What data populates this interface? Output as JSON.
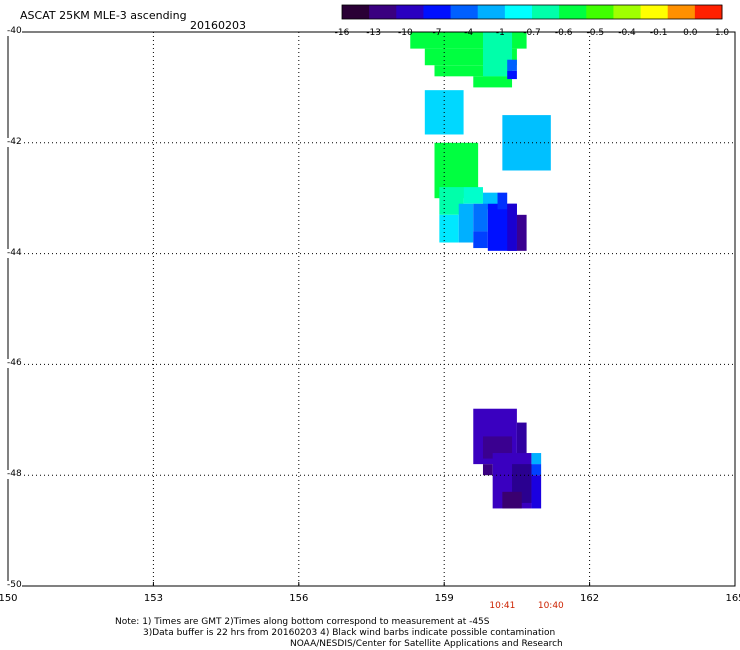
{
  "header": {
    "title": "ASCAT 25KM MLE-3 ascending",
    "date": "20160203"
  },
  "colorbar": {
    "labels": [
      "-16",
      "-13",
      "-10",
      "-7",
      "-4",
      "-1",
      "-0.7",
      "-0.6",
      "-0.5",
      "-0.4",
      "-0.1",
      "0.0",
      "1.0"
    ],
    "colors": [
      "#2a0035",
      "#3a0080",
      "#2a00c0",
      "#0010ff",
      "#0060ff",
      "#00b0ff",
      "#00ffff",
      "#00ffaa",
      "#00ff40",
      "#40ff00",
      "#a0ff00",
      "#ffff00",
      "#ff9000",
      "#ff2000"
    ]
  },
  "chart_data": {
    "type": "heatmap",
    "xlim": [
      150,
      165
    ],
    "ylim": [
      -50,
      -40
    ],
    "x_ticks": [
      "150",
      "153",
      "156",
      "159",
      "162",
      "165"
    ],
    "y_ticks": [
      "-40",
      "-42",
      "-44",
      "-46",
      "-48",
      "-50"
    ],
    "times": [
      {
        "label": "10:41",
        "lon": 160.2
      },
      {
        "label": "10:40",
        "lon": 161.2
      }
    ],
    "cells": [
      {
        "lon0": 158.3,
        "lon1": 160.7,
        "lat0": -40.0,
        "lat1": -40.3,
        "color": "#00ff40"
      },
      {
        "lon0": 158.6,
        "lon1": 160.5,
        "lat0": -40.3,
        "lat1": -40.6,
        "color": "#00ff40"
      },
      {
        "lon0": 158.8,
        "lon1": 160.4,
        "lat0": -40.6,
        "lat1": -40.8,
        "color": "#00ff40"
      },
      {
        "lon0": 159.6,
        "lon1": 160.4,
        "lat0": -40.8,
        "lat1": -41.0,
        "color": "#00ff40"
      },
      {
        "lon0": 159.8,
        "lon1": 160.4,
        "lat0": -40.0,
        "lat1": -40.8,
        "color": "#00ffaa"
      },
      {
        "lon0": 160.3,
        "lon1": 160.5,
        "lat0": -40.5,
        "lat1": -40.7,
        "color": "#0060ff"
      },
      {
        "lon0": 160.3,
        "lon1": 160.5,
        "lat0": -40.7,
        "lat1": -40.85,
        "color": "#0010ff"
      },
      {
        "lon0": 158.6,
        "lon1": 159.4,
        "lat0": -41.05,
        "lat1": -41.85,
        "color": "#00d8ff"
      },
      {
        "lon0": 160.2,
        "lon1": 161.2,
        "lat0": -41.5,
        "lat1": -42.5,
        "color": "#00c0ff"
      },
      {
        "lon0": 158.8,
        "lon1": 159.7,
        "lat0": -42.0,
        "lat1": -43.0,
        "color": "#00ff40"
      },
      {
        "lon0": 158.9,
        "lon1": 159.4,
        "lat0": -42.8,
        "lat1": -43.3,
        "color": "#00ffaa"
      },
      {
        "lon0": 159.4,
        "lon1": 159.8,
        "lat0": -42.8,
        "lat1": -43.1,
        "color": "#00ffcc"
      },
      {
        "lon0": 159.8,
        "lon1": 160.1,
        "lat0": -42.9,
        "lat1": -43.2,
        "color": "#00c0ff"
      },
      {
        "lon0": 158.9,
        "lon1": 159.3,
        "lat0": -43.3,
        "lat1": -43.8,
        "color": "#00e8ff"
      },
      {
        "lon0": 159.3,
        "lon1": 159.6,
        "lat0": -43.1,
        "lat1": -43.8,
        "color": "#00b0ff"
      },
      {
        "lon0": 159.6,
        "lon1": 159.9,
        "lat0": -43.1,
        "lat1": -43.6,
        "color": "#0070ff"
      },
      {
        "lon0": 159.6,
        "lon1": 159.9,
        "lat0": -43.6,
        "lat1": -43.9,
        "color": "#0040ff"
      },
      {
        "lon0": 159.9,
        "lon1": 160.5,
        "lat0": -43.1,
        "lat1": -43.95,
        "color": "#0010ff"
      },
      {
        "lon0": 160.1,
        "lon1": 160.3,
        "lat0": -42.9,
        "lat1": -43.2,
        "color": "#0030ff"
      },
      {
        "lon0": 160.3,
        "lon1": 160.5,
        "lat0": -43.1,
        "lat1": -43.95,
        "color": "#1a00d0"
      },
      {
        "lon0": 160.5,
        "lon1": 160.7,
        "lat0": -43.3,
        "lat1": -43.95,
        "color": "#3a0090"
      },
      {
        "lon0": 159.6,
        "lon1": 160.5,
        "lat0": -46.8,
        "lat1": -47.8,
        "color": "#3a00c0"
      },
      {
        "lon0": 160.5,
        "lon1": 160.7,
        "lat0": -47.05,
        "lat1": -47.8,
        "color": "#3000a0"
      },
      {
        "lon0": 159.8,
        "lon1": 160.4,
        "lat0": -47.3,
        "lat1": -47.7,
        "color": "#3a0090"
      },
      {
        "lon0": 159.8,
        "lon1": 160.0,
        "lat0": -47.8,
        "lat1": -48.0,
        "color": "#3a0080"
      },
      {
        "lon0": 160.0,
        "lon1": 160.8,
        "lat0": -47.6,
        "lat1": -48.6,
        "color": "#3a00c0"
      },
      {
        "lon0": 160.8,
        "lon1": 161.0,
        "lat0": -47.6,
        "lat1": -47.8,
        "color": "#00b0ff"
      },
      {
        "lon0": 160.8,
        "lon1": 161.0,
        "lat0": -47.8,
        "lat1": -48.0,
        "color": "#0040ff"
      },
      {
        "lon0": 160.8,
        "lon1": 161.0,
        "lat0": -48.0,
        "lat1": -48.6,
        "color": "#1a00e0"
      },
      {
        "lon0": 160.4,
        "lon1": 160.8,
        "lat0": -47.8,
        "lat1": -48.5,
        "color": "#2a0090"
      },
      {
        "lon0": 160.2,
        "lon1": 160.6,
        "lat0": -48.3,
        "lat1": -48.6,
        "color": "#3a0070"
      }
    ]
  },
  "notes": {
    "line1": "Note: 1) Times are GMT 2)Times along bottom correspond to measurement at -45S",
    "line2": "3)Data buffer is 22 hrs from 20160203 4) Black wind barbs indicate possible contamination",
    "line3": "NOAA/NESDIS/Center for Satellite Applications and Research"
  }
}
